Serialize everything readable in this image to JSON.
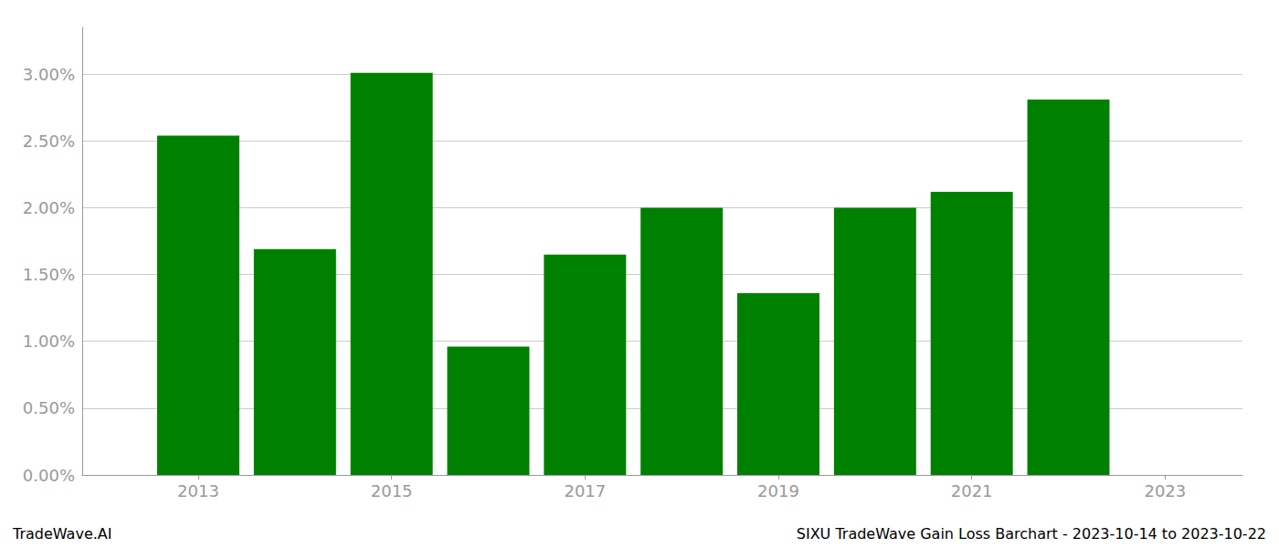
{
  "chart_data": {
    "type": "bar",
    "x": [
      2013,
      2014,
      2015,
      2016,
      2017,
      2018,
      2019,
      2020,
      2021,
      2022
    ],
    "values": [
      0.0254,
      0.0169,
      0.0301,
      0.0096,
      0.0165,
      0.02,
      0.0136,
      0.02,
      0.0212,
      0.0281
    ],
    "color": "#008000",
    "xlim": [
      2011.8,
      2023.8
    ],
    "xticks": [
      2013,
      2015,
      2017,
      2019,
      2021,
      2023
    ],
    "ylim": [
      0,
      0.0335
    ],
    "yticks": [
      {
        "value": 0.0,
        "label": "0.00%"
      },
      {
        "value": 0.005,
        "label": "0.50%"
      },
      {
        "value": 0.01,
        "label": "1.00%"
      },
      {
        "value": 0.015,
        "label": "1.50%"
      },
      {
        "value": 0.02,
        "label": "2.00%"
      },
      {
        "value": 0.025,
        "label": "2.50%"
      },
      {
        "value": 0.03,
        "label": "3.00%"
      }
    ],
    "grid": true,
    "annotations": [
      "TradeWave.AI",
      "SIXU TradeWave Gain Loss Barchart - 2023-10-14 to 2023-10-22"
    ]
  }
}
